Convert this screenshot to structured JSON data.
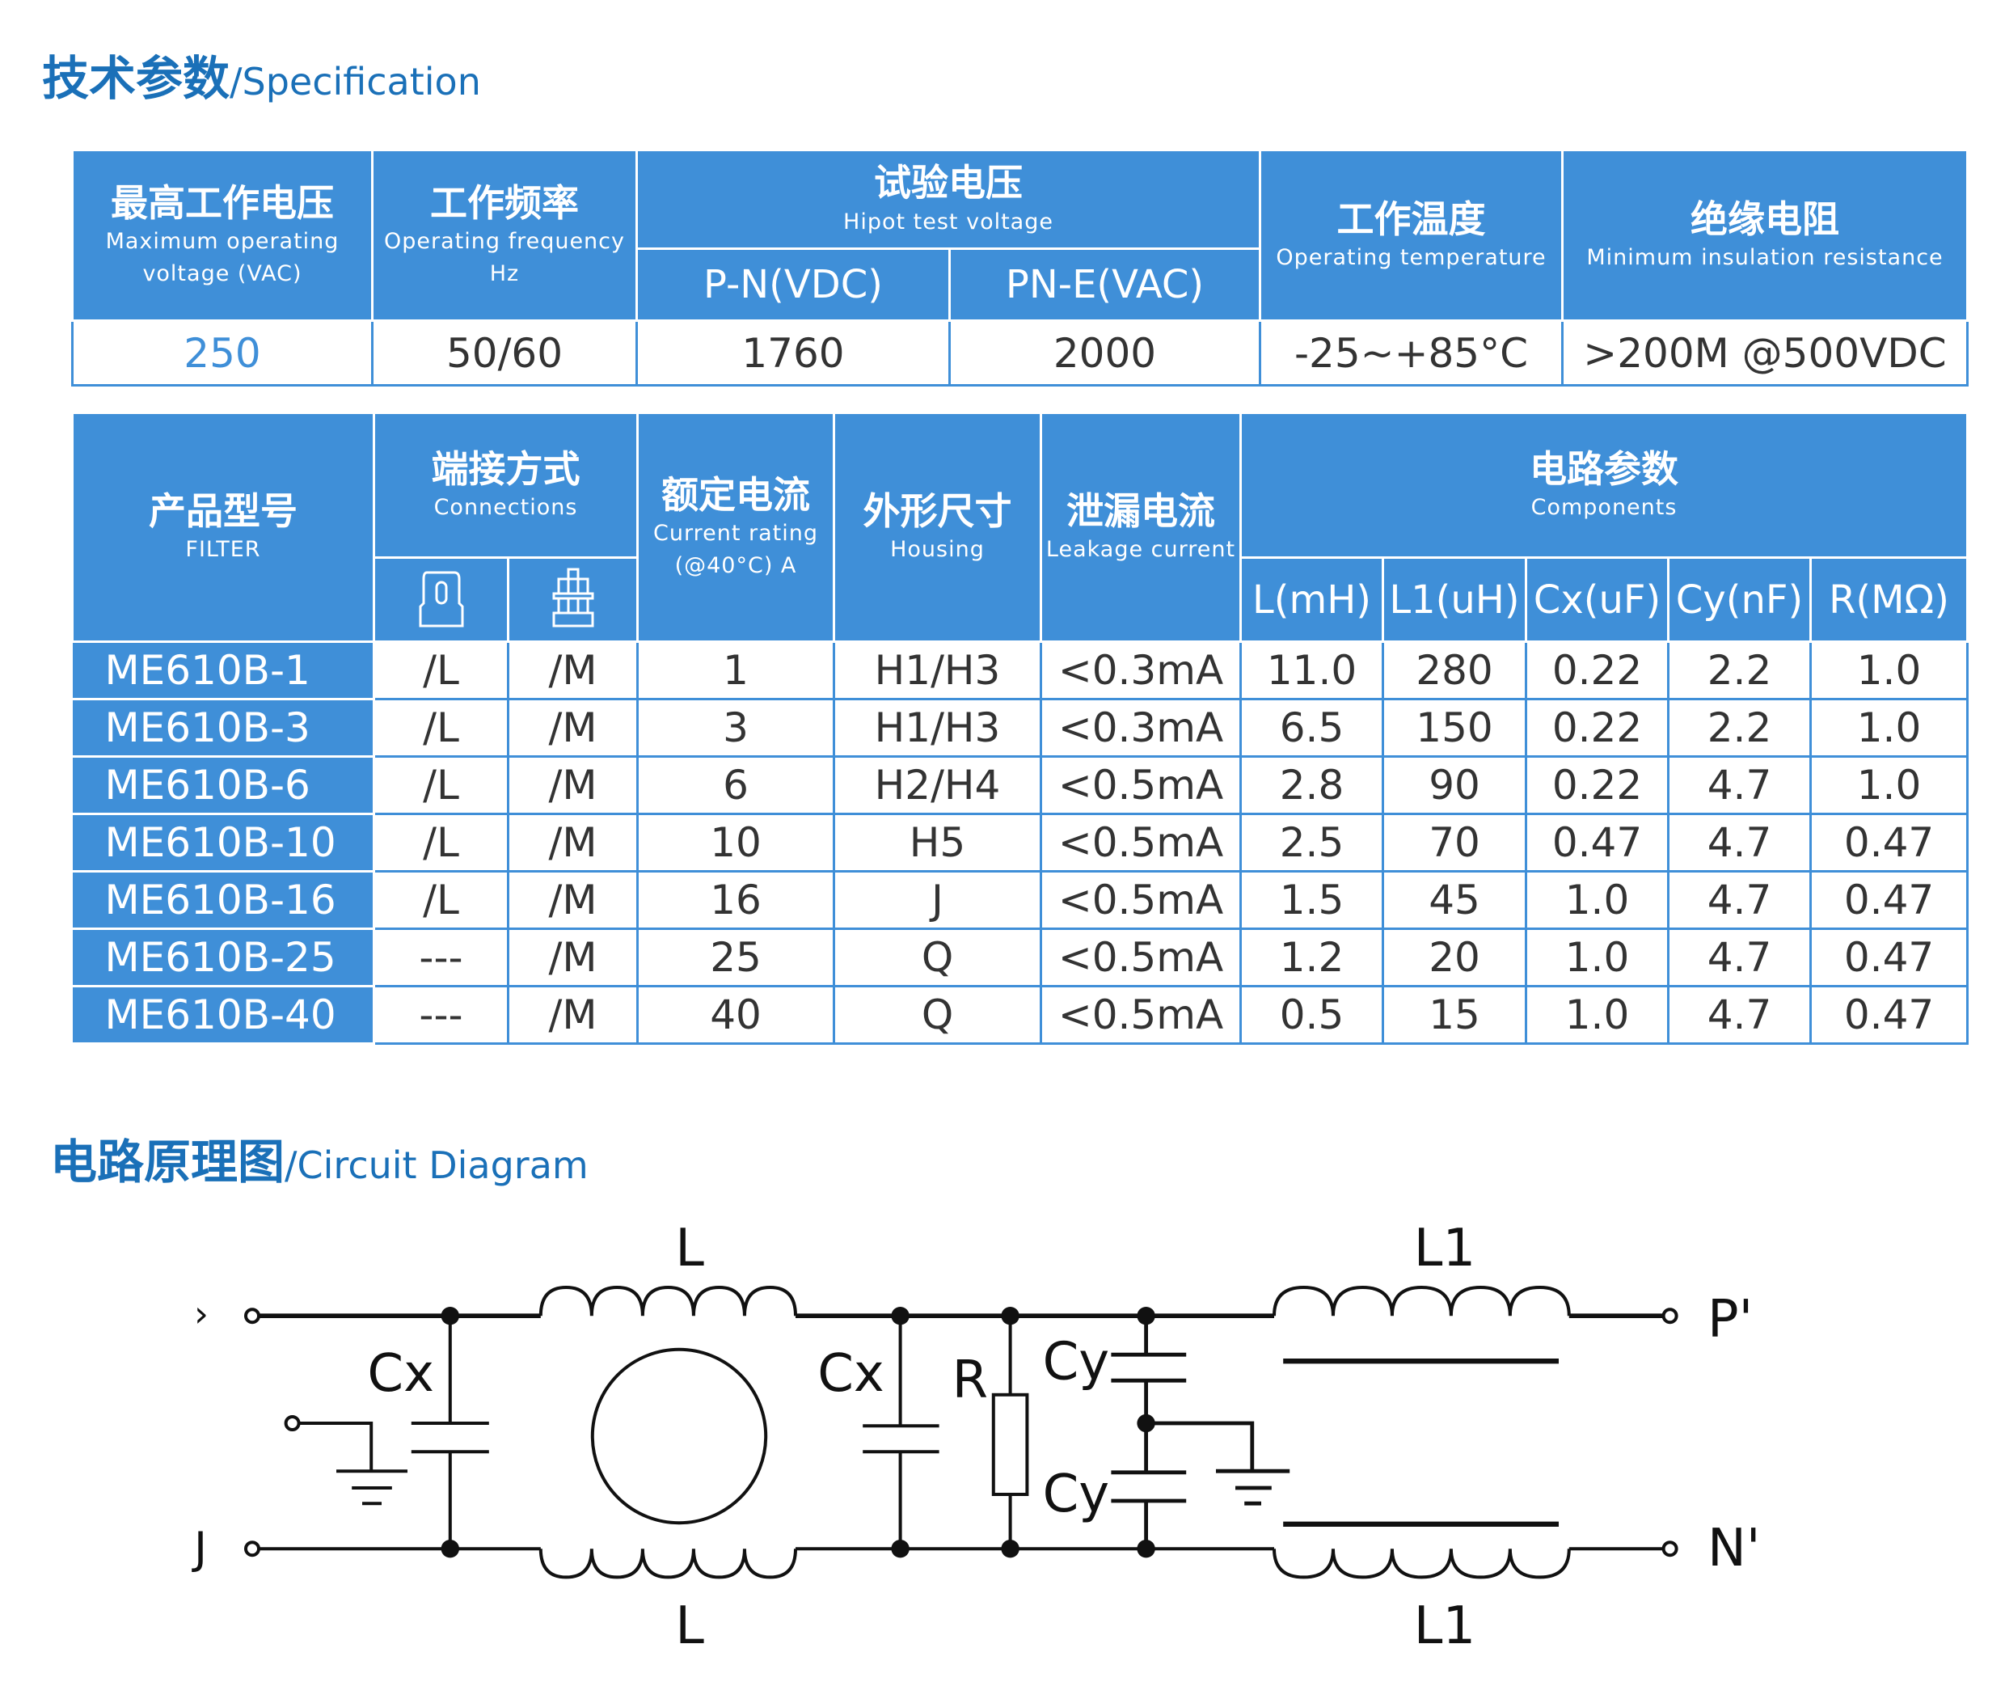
{
  "spec_title": {
    "cn": "技术参数",
    "sep": "/",
    "en": "Specification"
  },
  "table1": {
    "headers": {
      "max_voltage": {
        "cn": "最高工作电压",
        "en1": "Maximum operating",
        "en2": "voltage  (VAC)"
      },
      "frequency": {
        "cn": "工作频率",
        "en1": "Operating frequency",
        "en2": "Hz"
      },
      "hipot": {
        "cn": "试验电压",
        "en": "Hipot test voltage",
        "pn": "P-N(VDC)",
        "pne": "PN-E(VAC)"
      },
      "temperature": {
        "cn": "工作温度",
        "en": "Operating temperature"
      },
      "insulation": {
        "cn": "绝缘电阻",
        "en": "Minimum insulation resistance"
      }
    },
    "values": [
      "250",
      "50/60",
      "1760",
      "2000",
      "-25~+85°C",
      ">200M @500VDC"
    ]
  },
  "table2": {
    "headers": {
      "model": {
        "cn": "产品型号",
        "en": "FILTER"
      },
      "connections": {
        "cn": "端接方式",
        "en": "Connections",
        "icons": [
          "fast-on-terminal-icon",
          "screw-terminal-icon"
        ]
      },
      "current": {
        "cn": "额定电流",
        "en1": "Current rating",
        "en2": "(@40°C)  A"
      },
      "housing": {
        "cn": "外形尺寸",
        "en": "Housing"
      },
      "leakage": {
        "cn": "泄漏电流",
        "en": "Leakage current"
      },
      "components": {
        "cn": "电路参数",
        "en": "Components",
        "cols": [
          "L(mH)",
          "L1(uH)",
          "Cx(uF)",
          "Cy(nF)",
          "R(MΩ)"
        ]
      }
    },
    "rows": [
      [
        "ME610B-1",
        "/L",
        "/M",
        "1",
        "H1/H3",
        "<0.3mA",
        "11.0",
        "280",
        "0.22",
        "2.2",
        "1.0"
      ],
      [
        "ME610B-3",
        "/L",
        "/M",
        "3",
        "H1/H3",
        "<0.3mA",
        "6.5",
        "150",
        "0.22",
        "2.2",
        "1.0"
      ],
      [
        "ME610B-6",
        "/L",
        "/M",
        "6",
        "H2/H4",
        "<0.5mA",
        "2.8",
        "90",
        "0.22",
        "4.7",
        "1.0"
      ],
      [
        "ME610B-10",
        "/L",
        "/M",
        "10",
        "H5",
        "<0.5mA",
        "2.5",
        "70",
        "0.47",
        "4.7",
        "0.47"
      ],
      [
        "ME610B-16",
        "/L",
        "/M",
        "16",
        "J",
        "<0.5mA",
        "1.5",
        "45",
        "1.0",
        "4.7",
        "0.47"
      ],
      [
        "ME610B-25",
        "---",
        "/M",
        "25",
        "Q",
        "<0.5mA",
        "1.2",
        "20",
        "1.0",
        "4.7",
        "0.47"
      ],
      [
        "ME610B-40",
        "---",
        "/M",
        "40",
        "Q",
        "<0.5mA",
        "0.5",
        "15",
        "1.0",
        "4.7",
        "0.47"
      ]
    ]
  },
  "circuit_title": {
    "cn": "电路原理图",
    "sep": "/",
    "en": "Circuit Diagram"
  },
  "circuit": {
    "labels": {
      "L_top": "L",
      "L_bottom": "L",
      "L1_top": "L1",
      "L1_bottom": "L1",
      "cx1": "Cx",
      "cx2": "Cx",
      "r": "R",
      "cy1": "Cy",
      "cy2": "Cy",
      "out_p": "P'",
      "out_n": "N'",
      "in_p": "›",
      "in_n": "J"
    }
  },
  "colors": {
    "header_blue": "#3f8fd8",
    "title_blue": "#1a70b8"
  }
}
